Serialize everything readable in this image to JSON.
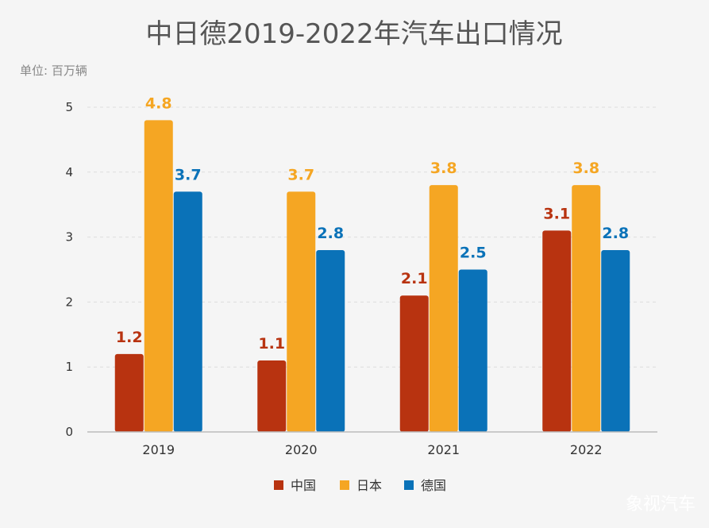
{
  "chart_data": {
    "type": "bar",
    "title": "中日德2019-2022年汽车出口情况",
    "unit_label": "单位: 百万辆",
    "categories": [
      "2019",
      "2020",
      "2021",
      "2022"
    ],
    "series": [
      {
        "name": "中国",
        "values": [
          1.2,
          1.1,
          2.1,
          3.1
        ],
        "color": "#b83310"
      },
      {
        "name": "日本",
        "values": [
          4.8,
          3.7,
          3.8,
          3.8
        ],
        "color": "#f5a623"
      },
      {
        "name": "德国",
        "values": [
          3.7,
          2.8,
          2.5,
          2.8
        ],
        "color": "#0a72b8"
      }
    ],
    "ylim": [
      0,
      5
    ],
    "yticks": [
      0,
      1,
      2,
      3,
      4,
      5
    ],
    "grid": true,
    "legend_position": "bottom-center"
  },
  "watermark": "象视汽车"
}
